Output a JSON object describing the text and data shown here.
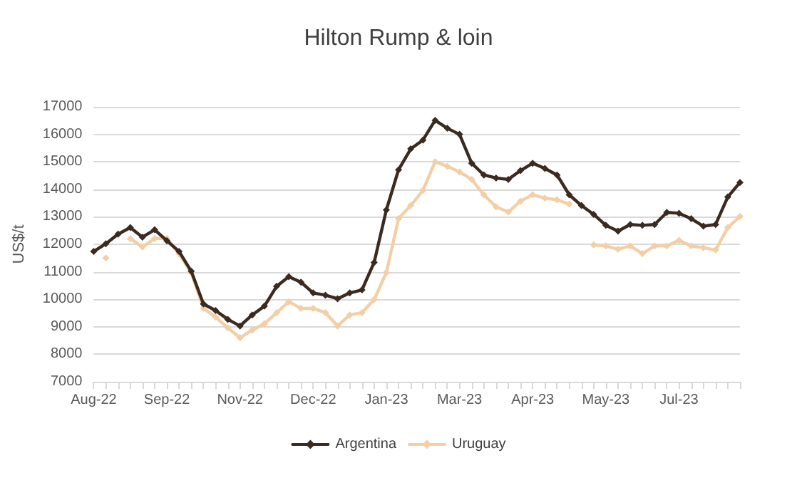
{
  "chart_data": {
    "type": "line",
    "title": "Hilton Rump & loin",
    "ylabel": "US$/t",
    "categories": [
      "Aug-22",
      null,
      null,
      null,
      null,
      null,
      "Sep-22",
      null,
      null,
      null,
      null,
      null,
      "Nov-22",
      null,
      null,
      null,
      null,
      null,
      "Dec-22",
      null,
      null,
      null,
      null,
      null,
      "Jan-23",
      null,
      null,
      null,
      null,
      null,
      "Mar-23",
      null,
      null,
      null,
      null,
      null,
      "Apr-23",
      null,
      null,
      null,
      null,
      null,
      "May-23",
      null,
      null,
      null,
      null,
      null,
      "Jul-23",
      null,
      null,
      null,
      null,
      null
    ],
    "series": [
      {
        "name": "Argentina",
        "color": "#3b2a20",
        "values": [
          11740,
          12020,
          12370,
          12610,
          12260,
          12530,
          12130,
          11740,
          11020,
          9830,
          9590,
          9270,
          9030,
          9430,
          9750,
          10470,
          10820,
          10620,
          10230,
          10150,
          10020,
          10230,
          10340,
          11340,
          13250,
          14710,
          15470,
          15790,
          16510,
          16220,
          16000,
          14950,
          14520,
          14410,
          14360,
          14680,
          14950,
          14760,
          14520,
          13800,
          13410,
          13090,
          12690,
          12480,
          12720,
          12690,
          12720,
          13160,
          13130,
          12930,
          12660,
          12720,
          13720,
          14250
        ]
      },
      {
        "name": "Uruguay",
        "color": "#f2cfa6",
        "values": [
          null,
          11500,
          null,
          12210,
          11900,
          12210,
          12210,
          11660,
          10970,
          9670,
          9350,
          8960,
          8600,
          8880,
          9110,
          9510,
          9910,
          9670,
          9670,
          9510,
          9030,
          9430,
          9510,
          9990,
          10970,
          12930,
          13410,
          13960,
          15000,
          14840,
          14630,
          14360,
          13800,
          13360,
          13170,
          13570,
          13800,
          13680,
          13620,
          13460,
          null,
          11980,
          11940,
          11820,
          11940,
          11660,
          11940,
          11940,
          12140,
          11940,
          11880,
          11790,
          12610,
          13010
        ]
      }
    ],
    "ylim": [
      7000,
      17000
    ],
    "yticks": [
      7000,
      8000,
      9000,
      10000,
      11000,
      12000,
      13000,
      14000,
      15000,
      16000,
      17000
    ],
    "grid": "y",
    "legend": "bottom",
    "marker": "diamond",
    "line_style": "solid"
  }
}
